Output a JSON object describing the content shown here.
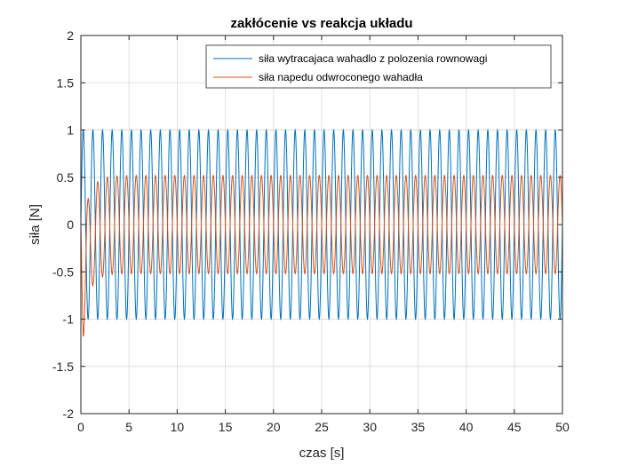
{
  "chart_data": {
    "type": "line",
    "title": "zakłócenie vs reakcja układu",
    "xlabel": "czas [s]",
    "ylabel": "siła [N]",
    "xlim": [
      0,
      50
    ],
    "ylim": [
      -2,
      2
    ],
    "xticks": [
      "0",
      "5",
      "10",
      "15",
      "20",
      "25",
      "30",
      "35",
      "40",
      "45",
      "50"
    ],
    "yticks": [
      "2",
      "1.5",
      "1",
      "0.5",
      "0",
      "-0.5",
      "-1",
      "-1.5",
      "-2"
    ],
    "grid": true,
    "legend_position": "top-right",
    "series": [
      {
        "name": "siła wytracajaca wahadlo z polozenia rownowagi",
        "color": "#0072BD",
        "amplitude": 1,
        "frequency_hz": 1,
        "phase_deg": 0
      },
      {
        "name": "siła napedu odwroconego wahadła",
        "color": "#D95319",
        "amplitude_transient_peak": -0.75,
        "amplitude_steady": 0.52,
        "frequency_hz": 1,
        "phase_deg": 180,
        "settling_time_s": 3
      }
    ]
  }
}
